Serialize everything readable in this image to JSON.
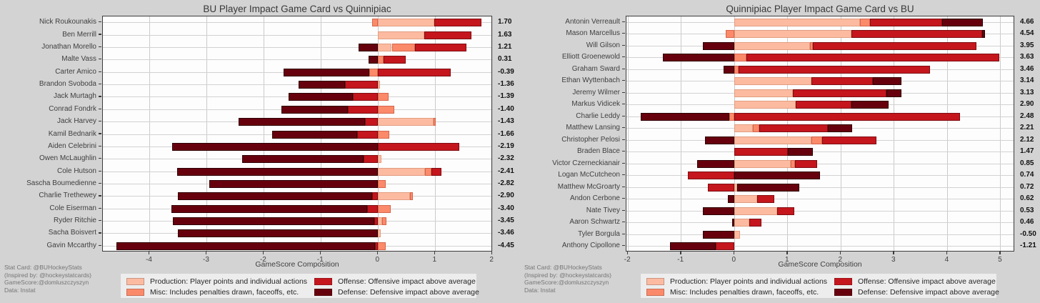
{
  "colors": {
    "production": "#FCBBA1",
    "misc": "#FB8A6B",
    "offense": "#C5161D",
    "defense": "#67000D",
    "page_background": "#d4d3d4",
    "plot_background": "#fdfdfd"
  },
  "legend": {
    "items": [
      {
        "key": "production",
        "label": "Production: Player points and individual actions"
      },
      {
        "key": "misc",
        "label": "Misc: Includes penalties drawn, faceoffs, etc."
      },
      {
        "key": "offense",
        "label": "Offense: Offensive impact above average"
      },
      {
        "key": "defense",
        "label": "Defense: Defensive impact above average"
      }
    ]
  },
  "footnote": {
    "lines": [
      "Stat Card: @BUHockeyStats",
      "(Inspired by: @hockeystatcards)",
      "GameScore:@domluszczyszyn",
      "Data: Instat"
    ]
  },
  "chart_data": [
    {
      "type": "bar",
      "orientation": "horizontal-diverging-stacked",
      "title": "BU Player Impact Game Card vs Quinnipiac",
      "xlabel": "GameScore Composition",
      "xlim": [
        -4.82,
        2.01
      ],
      "xticks": [
        -4,
        -3,
        -2,
        -1,
        0,
        1,
        2
      ],
      "grid": true,
      "series_order": [
        "production",
        "misc",
        "offense",
        "defense"
      ],
      "players": [
        {
          "name": "Nick Roukounakis",
          "total": "1.70",
          "production": 0.98,
          "misc": -0.11,
          "offense": 0.83,
          "defense": 0
        },
        {
          "name": "Ben Merrill",
          "total": "1.63",
          "production": 0.81,
          "misc": 0,
          "offense": 0.82,
          "defense": 0
        },
        {
          "name": "Jonathan Morello",
          "total": "1.21",
          "production": 0.24,
          "misc": 0.41,
          "offense": 0.9,
          "defense": -0.34
        },
        {
          "name": "Malte Vass",
          "total": "0.31",
          "production": 0,
          "misc": 0.1,
          "offense": 0.38,
          "defense": -0.17
        },
        {
          "name": "Carter Amico",
          "total": "-0.39",
          "production": 0,
          "misc": -0.15,
          "offense": 1.27,
          "defense": -1.51
        },
        {
          "name": "Brandon Svoboda",
          "total": "-1.36",
          "production": 0.03,
          "misc": 0,
          "offense": -0.58,
          "defense": -0.81
        },
        {
          "name": "Jack Murtagh",
          "total": "-1.39",
          "production": 0,
          "misc": 0.18,
          "offense": -0.44,
          "defense": -1.13
        },
        {
          "name": "Conrad Fondrk",
          "total": "-1.40",
          "production": 0,
          "misc": 0.29,
          "offense": -0.53,
          "defense": -1.16
        },
        {
          "name": "Jack Harvey",
          "total": "-1.43",
          "production": 0.97,
          "misc": 0.04,
          "offense": -0.23,
          "defense": -2.21
        },
        {
          "name": "Kamil Bednarik",
          "total": "-1.66",
          "production": 0,
          "misc": 0.19,
          "offense": -0.37,
          "defense": -1.48
        },
        {
          "name": "Aiden Celebrini",
          "total": "-2.19",
          "production": 0,
          "misc": 0,
          "offense": 1.42,
          "defense": -3.61
        },
        {
          "name": "Owen McLaughlin",
          "total": "-2.32",
          "production": 0.06,
          "misc": 0,
          "offense": -0.25,
          "defense": -2.13
        },
        {
          "name": "Cole Hutson",
          "total": "-2.41",
          "production": 0.82,
          "misc": 0.11,
          "offense": 0.18,
          "defense": -3.52
        },
        {
          "name": "Sascha Boumedienne",
          "total": "-2.82",
          "production": 0,
          "misc": 0.13,
          "offense": 0,
          "defense": -2.95
        },
        {
          "name": "Charlie Trethewey",
          "total": "-2.90",
          "production": 0.56,
          "misc": 0.05,
          "offense": -0.11,
          "defense": -3.4
        },
        {
          "name": "Cole Eiserman",
          "total": "-3.40",
          "production": 0,
          "misc": 0.22,
          "offense": -0.19,
          "defense": -3.43
        },
        {
          "name": "Ryder Ritchie",
          "total": "-3.45",
          "production": 0.07,
          "misc": 0.08,
          "offense": -0.07,
          "defense": -3.53
        },
        {
          "name": "Sacha Boisvert",
          "total": "-3.46",
          "production": 0.05,
          "misc": 0,
          "offense": 0,
          "defense": -3.51
        },
        {
          "name": "Gavin Mccarthy",
          "total": "-4.45",
          "production": 0,
          "misc": 0.13,
          "offense": -0.06,
          "defense": -4.52
        }
      ]
    },
    {
      "type": "bar",
      "orientation": "horizontal-diverging-stacked",
      "title": "Quinnipiac Player Impact Game Card vs BU",
      "xlabel": "GameScore Composition",
      "xlim": [
        -2.03,
        5.27
      ],
      "xticks": [
        -2,
        -1,
        0,
        1,
        2,
        3,
        4,
        5
      ],
      "grid": true,
      "series_order": [
        "production",
        "misc",
        "offense",
        "defense"
      ],
      "players": [
        {
          "name": "Antonin Verreault",
          "total": "4.66",
          "production": 2.36,
          "misc": 0.19,
          "offense": 1.35,
          "defense": 0.76
        },
        {
          "name": "Mason Marcellus",
          "total": "4.54",
          "production": 2.2,
          "misc": -0.17,
          "offense": 2.45,
          "defense": 0.06
        },
        {
          "name": "Will Gilson",
          "total": "3.95",
          "production": 1.42,
          "misc": 0.05,
          "offense": 3.08,
          "defense": -0.6
        },
        {
          "name": "Elliott Groenewold",
          "total": "3.63",
          "production": 0,
          "misc": 0.22,
          "offense": 4.76,
          "defense": -1.35
        },
        {
          "name": "Graham Sward",
          "total": "3.46",
          "production": 0,
          "misc": 0.08,
          "offense": 3.59,
          "defense": -0.21
        },
        {
          "name": "Ethan Wyttenbach",
          "total": "3.14",
          "production": 1.45,
          "misc": 0,
          "offense": 1.15,
          "defense": 0.54
        },
        {
          "name": "Jeremy Wilmer",
          "total": "3.13",
          "production": 1.1,
          "misc": 0,
          "offense": 1.75,
          "defense": 0.28
        },
        {
          "name": "Markus Vidicek",
          "total": "2.90",
          "production": 1.15,
          "misc": 0,
          "offense": 1.05,
          "defense": 0.7
        },
        {
          "name": "Charlie Leddy",
          "total": "2.48",
          "production": 0,
          "misc": -0.1,
          "offense": 4.24,
          "defense": -1.66
        },
        {
          "name": "Matthew Lansing",
          "total": "2.21",
          "production": 0.35,
          "misc": 0.11,
          "offense": 1.3,
          "defense": 0.45
        },
        {
          "name": "Christopher Pelosi",
          "total": "2.12",
          "production": 1.45,
          "misc": 0.2,
          "offense": 1.02,
          "defense": -0.55
        },
        {
          "name": "Braden Blace",
          "total": "1.47",
          "production": 0,
          "misc": 0,
          "offense": 1.0,
          "defense": 0.47
        },
        {
          "name": "Victor Czerneckianair",
          "total": "0.85",
          "production": 1.05,
          "misc": 0.09,
          "offense": 0.41,
          "defense": -0.7
        },
        {
          "name": "Logan McCutcheon",
          "total": "0.74",
          "production": 0,
          "misc": 0,
          "offense": -0.87,
          "defense": 1.61
        },
        {
          "name": "Matthew McGroarty",
          "total": "0.72",
          "production": 0.05,
          "misc": 0,
          "offense": -0.5,
          "defense": 1.17
        },
        {
          "name": "Andon Cerbone",
          "total": "0.62",
          "production": 0.42,
          "misc": 0,
          "offense": 0.33,
          "defense": -0.13
        },
        {
          "name": "Nate Tivey",
          "total": "0.53",
          "production": 0.8,
          "misc": 0,
          "offense": 0.33,
          "defense": -0.6
        },
        {
          "name": "Aaron Schwartz",
          "total": "0.46",
          "production": 0.28,
          "misc": 0,
          "offense": 0.23,
          "defense": -0.05
        },
        {
          "name": "Tyler Borgula",
          "total": "-0.50",
          "production": 0.1,
          "misc": 0,
          "offense": 0,
          "defense": -0.6
        },
        {
          "name": "Anthony Cipollone",
          "total": "-1.21",
          "production": 0,
          "misc": 0,
          "offense": -0.35,
          "defense": -0.86
        }
      ]
    }
  ]
}
